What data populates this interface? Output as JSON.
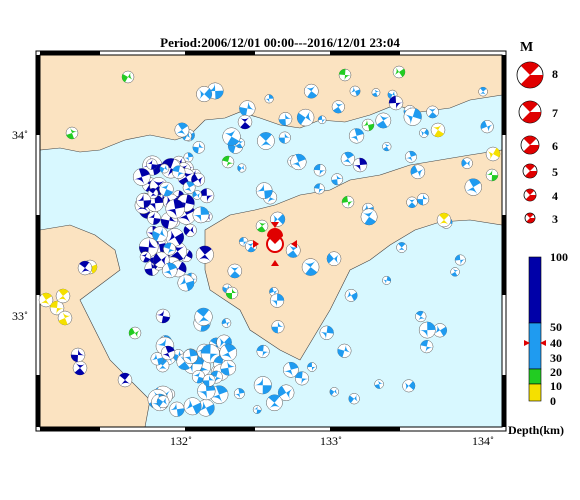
{
  "title": "Period:2006/12/01 00:00---2016/12/01 23:04",
  "axes": {
    "lon_labels": [
      "132˚",
      "133˚",
      "134˚"
    ],
    "lat_labels": [
      "34˚",
      "33˚"
    ]
  },
  "magnitude_legend": {
    "title": "M",
    "entries": [
      "8",
      "7",
      "6",
      "5",
      "4",
      "3"
    ]
  },
  "depth_legend": {
    "labels": [
      "100",
      "50",
      "40",
      "30",
      "20",
      "10",
      "0"
    ],
    "unit": "Depth(km)",
    "colors": {
      "deep": "#0000a8",
      "mid": "#1f9bf0",
      "shallow": "#22cc22",
      "surface": "#f5e000"
    }
  },
  "colors": {
    "land": "#fbe3c1",
    "sea": "#d8f8ff",
    "target": "#e00000"
  }
}
